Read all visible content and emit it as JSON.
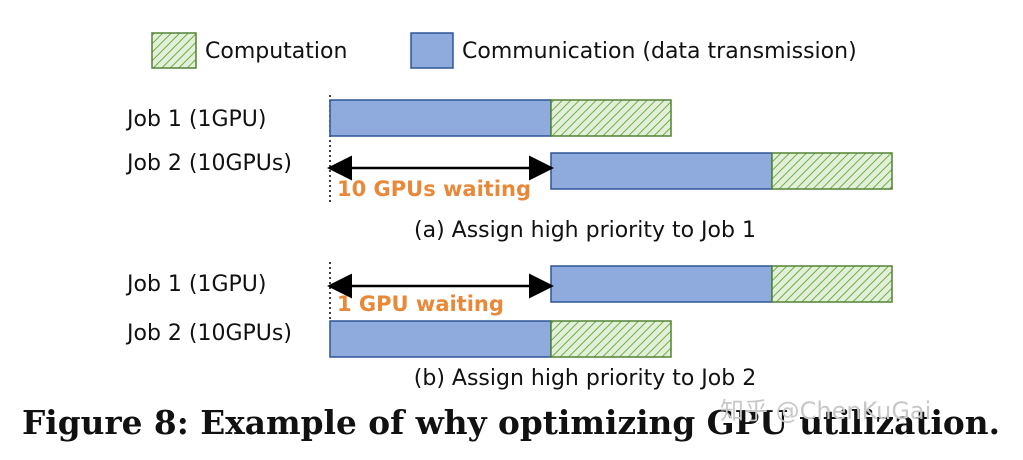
{
  "legend": {
    "computation": "Computation",
    "communication": "Communication (data transmission)"
  },
  "panel_a": {
    "job1": "Job 1 (1GPU)",
    "job2": "Job 2 (10GPUs)",
    "waiting": "10 GPUs waiting",
    "caption": "(a) Assign high priority to Job 1"
  },
  "panel_b": {
    "job1": "Job 1 (1GPU)",
    "job2": "Job 2 (10GPUs)",
    "waiting": "1 GPU waiting",
    "caption": "(b) Assign high priority to Job 2"
  },
  "figure_caption": "Figure 8: Example of why optimizing GPU utilization.",
  "watermark": "知乎 @ChenKuGai"
}
